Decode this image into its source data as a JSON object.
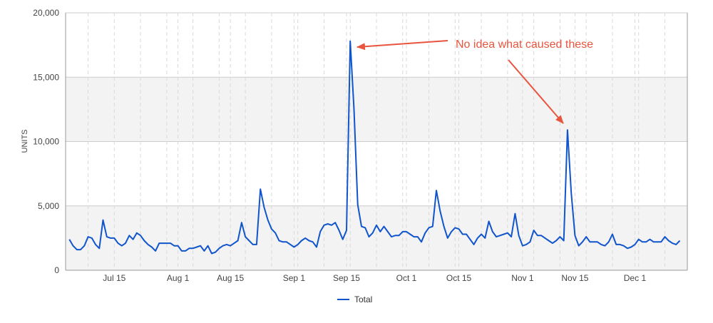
{
  "colors": {
    "line": "#1155cc",
    "annotation": "#e8543e",
    "band": "#f3f3f3",
    "gridline": "#cccccc",
    "vgridline": "#d9d9d9",
    "axis": "#999999"
  },
  "chart_data": {
    "type": "line",
    "title": "",
    "xlabel": "",
    "ylabel": "UNITS",
    "ylim": [
      0,
      20000
    ],
    "y_ticks": [
      {
        "value": 0,
        "label": "0"
      },
      {
        "value": 5000,
        "label": "5,000"
      },
      {
        "value": 10000,
        "label": "10,000"
      },
      {
        "value": 15000,
        "label": "15,000"
      },
      {
        "value": 20000,
        "label": "20,000"
      }
    ],
    "xlim": [
      "2015-07-02",
      "2015-12-15"
    ],
    "x_ticks": [
      {
        "date": "2015-07-15",
        "label": "Jul 15"
      },
      {
        "date": "2015-08-01",
        "label": "Aug 1"
      },
      {
        "date": "2015-08-15",
        "label": "Aug 15"
      },
      {
        "date": "2015-09-01",
        "label": "Sep 1"
      },
      {
        "date": "2015-09-15",
        "label": "Sep 15"
      },
      {
        "date": "2015-10-01",
        "label": "Oct 1"
      },
      {
        "date": "2015-10-15",
        "label": "Oct 15"
      },
      {
        "date": "2015-11-01",
        "label": "Nov 1"
      },
      {
        "date": "2015-11-15",
        "label": "Nov 15"
      },
      {
        "date": "2015-12-01",
        "label": "Dec 1"
      }
    ],
    "minor_gridline_dates": [
      "2015-07-08",
      "2015-07-22",
      "2015-07-29",
      "2015-08-05",
      "2015-08-12",
      "2015-08-19",
      "2015-08-26",
      "2015-09-02",
      "2015-09-09",
      "2015-09-16",
      "2015-09-23",
      "2015-09-30",
      "2015-10-07",
      "2015-10-14",
      "2015-10-21",
      "2015-10-28",
      "2015-11-04",
      "2015-11-11",
      "2015-11-18",
      "2015-11-25",
      "2015-12-02",
      "2015-12-09"
    ],
    "grid": true,
    "legend": {
      "position": "bottom"
    },
    "series": [
      {
        "name": "Total",
        "start_date": "2015-07-03",
        "values": [
          2400,
          1900,
          1600,
          1600,
          1900,
          2600,
          2500,
          2000,
          1700,
          3900,
          2600,
          2500,
          2500,
          2100,
          1900,
          2100,
          2700,
          2400,
          2900,
          2700,
          2300,
          2000,
          1800,
          1500,
          2100,
          2100,
          2100,
          2100,
          1900,
          1900,
          1500,
          1500,
          1700,
          1700,
          1800,
          1900,
          1500,
          1900,
          1300,
          1400,
          1700,
          1900,
          2000,
          1900,
          2100,
          2300,
          3700,
          2600,
          2300,
          2000,
          2000,
          6300,
          4900,
          3900,
          3200,
          2900,
          2300,
          2200,
          2200,
          2000,
          1800,
          2000,
          2300,
          2500,
          2300,
          2200,
          1800,
          3000,
          3500,
          3600,
          3500,
          3700,
          3100,
          2400,
          3100,
          17800,
          12500,
          5100,
          3400,
          3300,
          2600,
          2900,
          3500,
          3000,
          3400,
          3000,
          2600,
          2700,
          2700,
          3000,
          3000,
          2800,
          2600,
          2600,
          2200,
          2900,
          3300,
          3400,
          6200,
          4600,
          3400,
          2500,
          3000,
          3300,
          3200,
          2800,
          2800,
          2400,
          2000,
          2500,
          2800,
          2500,
          3800,
          3000,
          2600,
          2700,
          2800,
          2900,
          2600,
          4400,
          2700,
          1900,
          2000,
          2200,
          3100,
          2700,
          2700,
          2500,
          2300,
          2100,
          2300,
          2600,
          2300,
          10900,
          6000,
          2700,
          1900,
          2200,
          2600,
          2200,
          2200,
          2200,
          2000,
          1900,
          2200,
          2800,
          2000,
          2000,
          1900,
          1700,
          1800,
          2000,
          2400,
          2200,
          2200,
          2400,
          2200,
          2200,
          2200,
          2600,
          2300,
          2100,
          2000,
          2300
        ]
      }
    ],
    "annotations": [
      {
        "text": "No idea what caused these"
      }
    ]
  }
}
